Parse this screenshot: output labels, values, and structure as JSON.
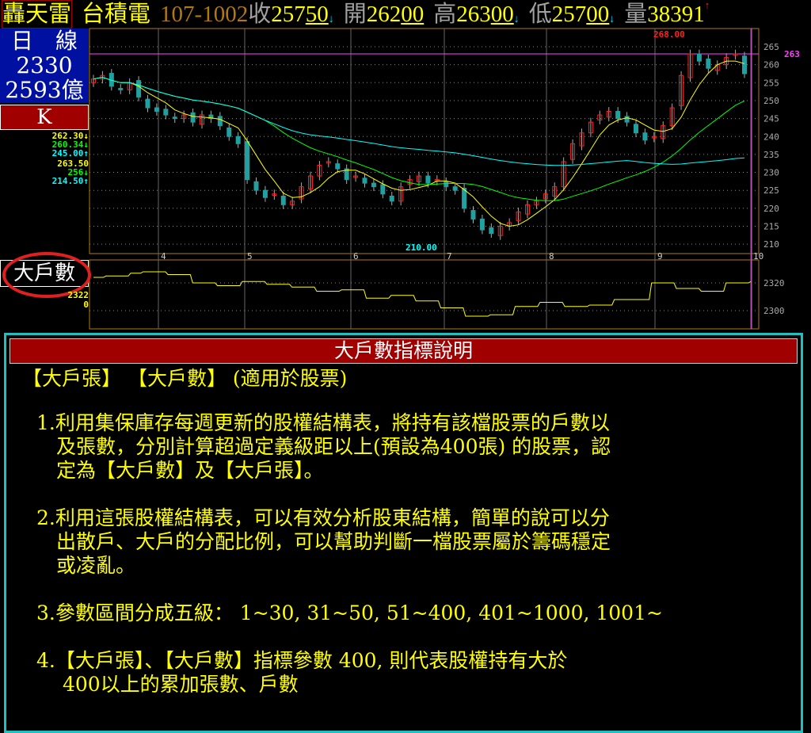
{
  "header": {
    "brand": "轟天雷",
    "stock_name": "台積電",
    "date": "107-1002",
    "close_label": "收",
    "close": "257",
    "close_dec": "50",
    "open_label": "開",
    "open": "262",
    "open_dec": "00",
    "high_label": "高",
    "high": "263",
    "high_dec": "00",
    "low_label": "低",
    "low": "257",
    "low_dec": "00",
    "volume_label": "量",
    "volume": "38391",
    "down_arrow": "↓",
    "up_arrow": "↑"
  },
  "side": {
    "period": "日　線",
    "code": "2330",
    "amount": "2593億",
    "k_button": "K"
  },
  "legend": [
    {
      "text": "262.30↓",
      "color": "#ffff00"
    },
    {
      "text": "260.34↓",
      "color": "#00ff00"
    },
    {
      "text": "245.00↑",
      "color": "#00ffff"
    },
    {
      "text": "263.50",
      "color": "#ffff00"
    },
    {
      "text": "256↓",
      "color": "#00ff00"
    },
    {
      "text": "214.50↑",
      "color": "#00ffff"
    }
  ],
  "chart_data": {
    "type": "candlestick",
    "y_ticks": [
      265,
      260,
      255,
      250,
      245,
      240,
      235,
      230,
      225,
      220,
      215,
      210
    ],
    "ylim": [
      208,
      269
    ],
    "current_price_label": "263",
    "high_marker": "268.00",
    "low_marker": "210.00",
    "x_ticks": [
      "4",
      "5",
      "6",
      "7",
      "8",
      "9",
      "10"
    ],
    "closes": [
      256,
      257,
      254,
      253,
      255,
      251,
      248,
      247,
      246,
      245,
      246,
      244,
      246,
      245,
      243,
      240,
      238,
      228,
      225,
      223,
      224,
      221,
      222,
      226,
      229,
      232,
      233,
      231,
      228,
      229,
      227,
      226,
      224,
      222,
      226,
      228,
      229,
      227,
      228,
      226,
      225,
      220,
      217,
      214,
      213,
      215,
      216,
      219,
      221,
      222,
      224,
      226,
      233,
      238,
      241,
      244,
      246,
      247,
      245,
      244,
      241,
      239,
      240,
      243,
      248,
      257,
      263,
      261,
      259,
      260,
      262,
      263,
      257.5
    ],
    "ma_colors": {
      "ma5": "#ffff00",
      "ma20": "#00ff00",
      "ma60": "#00ffff"
    },
    "indicator": {
      "name": "大戶數",
      "value": "2322",
      "value2": "0",
      "y_ticks": [
        2320,
        2300
      ],
      "ylim": [
        2290,
        2334
      ],
      "values": [
        2324,
        2325,
        2325,
        2327,
        2328,
        2328,
        2326,
        2326,
        2320,
        2320,
        2318,
        2318,
        2321,
        2321,
        2319,
        2319,
        2317,
        2317,
        2314,
        2314,
        2315,
        2315,
        2309,
        2309,
        2311,
        2311,
        2307,
        2307,
        2302,
        2302,
        2296,
        2296,
        2297,
        2297,
        2303,
        2303,
        2306,
        2306,
        2303,
        2303,
        2304,
        2304,
        2308,
        2308,
        2308,
        2320,
        2320,
        2316,
        2316,
        2314,
        2314,
        2320,
        2320,
        2321
      ]
    }
  },
  "dialog": {
    "title": "大戶數指標說明",
    "subtitle": "【大戶張】 【大戶數】 (適用於股票)",
    "items": [
      [
        "1.利用集保庫存每週更新的股權結構表，將持有該檔股票的戶數以",
        "　及張數，分別計算超過定義級距以上(預設為400張) 的股票，認",
        "　定為【大戶數】及【大戶張】。"
      ],
      [
        "2.利用這張股權結構表，可以有效分析股東結構，簡單的說可以分",
        "　出散戶、大戶的分配比例，可以幫助判斷一檔股票屬於籌碼穩定",
        "　或凌亂。"
      ],
      [
        "3.參數區間分成五級： 1~30, 31~50, 51~400, 401~1000, 1001~"
      ],
      [
        "4.【大戶張】、【大戶數】指標參數 400, 則代表股權持有大於",
        "　 400以上的累加張數、戶數"
      ]
    ]
  }
}
